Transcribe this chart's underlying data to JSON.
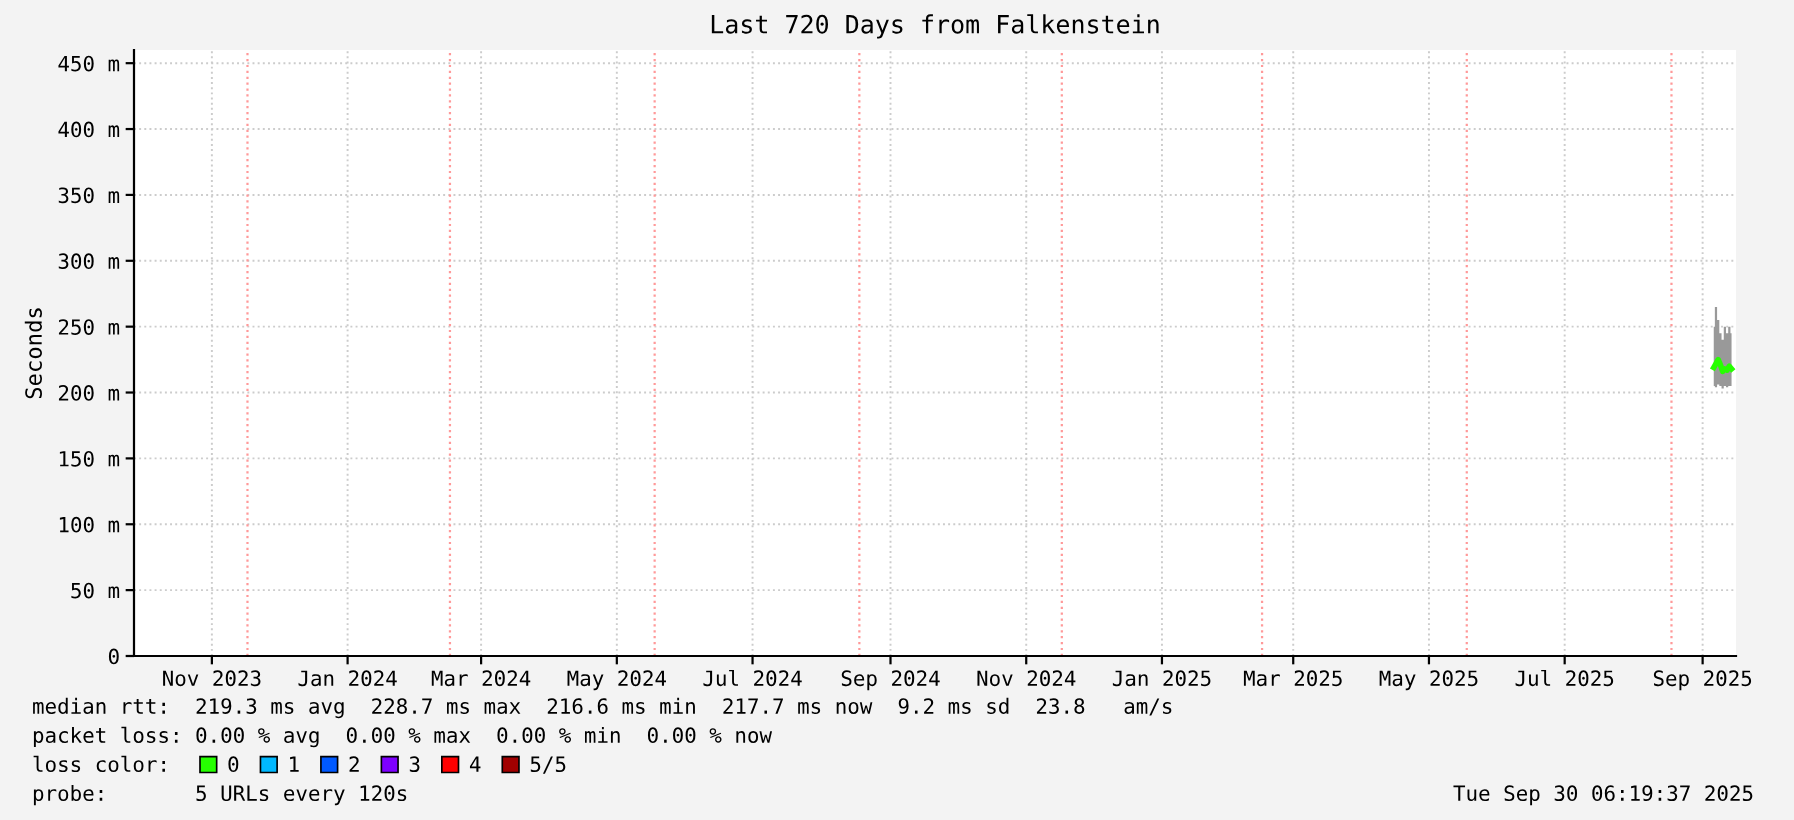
{
  "chart_data": {
    "type": "line",
    "title": "Last 720 Days from Falkenstein",
    "ylabel": "Seconds",
    "x": [
      "2025-09-20",
      "2025-09-21",
      "2025-09-22",
      "2025-09-23",
      "2025-09-24",
      "2025-09-25",
      "2025-09-26",
      "2025-09-27",
      "2025-09-28"
    ],
    "series": [
      {
        "name": "0",
        "color": "#26ff00",
        "values": [
          219,
          222,
          225,
          221,
          216,
          218,
          217,
          220,
          218
        ],
        "lower": [
          205,
          204,
          206,
          205,
          203,
          205,
          204,
          205,
          205
        ],
        "upper": [
          250,
          265,
          255,
          245,
          240,
          250,
          245,
          250,
          245
        ]
      },
      {
        "name": "1",
        "color": "#00b8ff",
        "values": [
          null,
          null,
          null,
          null,
          null,
          null,
          null,
          null,
          null
        ]
      },
      {
        "name": "2",
        "color": "#0059ff",
        "values": [
          null,
          null,
          null,
          null,
          null,
          null,
          null,
          null,
          null
        ]
      },
      {
        "name": "3",
        "color": "#7e00ff",
        "values": [
          null,
          null,
          null,
          null,
          null,
          null,
          null,
          null,
          null
        ]
      },
      {
        "name": "4",
        "color": "#ff0000",
        "values": [
          null,
          null,
          null,
          null,
          null,
          null,
          null,
          null,
          null
        ]
      },
      {
        "name": "5/5",
        "color": "#a10000",
        "values": [
          null,
          null,
          null,
          null,
          null,
          null,
          null,
          null,
          null
        ]
      }
    ],
    "xlim": [
      "2023-10-11",
      "2025-09-30"
    ],
    "xticks": [
      {
        "value": "2023-11-15",
        "label": "Nov 2023"
      },
      {
        "value": "2024-01-15",
        "label": "Jan 2024"
      },
      {
        "value": "2024-03-15",
        "label": "Mar 2024"
      },
      {
        "value": "2024-05-15",
        "label": "May 2024"
      },
      {
        "value": "2024-07-15",
        "label": "Jul 2024"
      },
      {
        "value": "2024-09-15",
        "label": "Sep 2024"
      },
      {
        "value": "2024-11-15",
        "label": "Nov 2024"
      },
      {
        "value": "2025-01-15",
        "label": "Jan 2025"
      },
      {
        "value": "2025-03-15",
        "label": "Mar 2025"
      },
      {
        "value": "2025-05-15",
        "label": "May 2025"
      },
      {
        "value": "2025-07-15",
        "label": "Jul 2025"
      },
      {
        "value": "2025-09-15",
        "label": "Sep 2025"
      }
    ],
    "ylim": [
      0,
      460
    ],
    "yticks": [
      0,
      {
        "value": 50,
        "label": "50 m"
      },
      {
        "value": 100,
        "label": "100 m"
      },
      {
        "value": 150,
        "label": "150 m"
      },
      {
        "value": 200,
        "label": "200 m"
      },
      {
        "value": 250,
        "label": "250 m"
      },
      {
        "value": 300,
        "label": "300 m"
      },
      {
        "value": 350,
        "label": "350 m"
      },
      {
        "value": 400,
        "label": "400 m"
      },
      {
        "value": 450,
        "label": "450 m"
      }
    ],
    "ref_lines": [
      {
        "axis": "x",
        "value": "2023-12-01",
        "color": "#ff9999",
        "line_style": "dotted"
      },
      {
        "axis": "x",
        "value": "2024-03-01",
        "color": "#ff9999",
        "line_style": "dotted"
      },
      {
        "axis": "x",
        "value": "2024-06-01",
        "color": "#ff9999",
        "line_style": "dotted"
      },
      {
        "axis": "x",
        "value": "2024-09-01",
        "color": "#ff9999",
        "line_style": "dotted"
      },
      {
        "axis": "x",
        "value": "2024-12-01",
        "color": "#ff9999",
        "line_style": "dotted"
      },
      {
        "axis": "x",
        "value": "2025-03-01",
        "color": "#ff9999",
        "line_style": "dotted"
      },
      {
        "axis": "x",
        "value": "2025-06-01",
        "color": "#ff9999",
        "line_style": "dotted"
      },
      {
        "axis": "x",
        "value": "2025-09-01",
        "color": "#ff9999",
        "line_style": "dotted"
      }
    ],
    "grid": true,
    "legend": "bottom left",
    "marker": "none",
    "line_style": "solid",
    "annotations": [
      "median rtt:  219.3 ms avg  228.7 ms max  216.6 ms min  217.7 ms now  9.2 ms sd  23.8   am/s",
      "packet loss: 0.00 % avg  0.00 % max  0.00 % min  0.00 % now",
      "loss color:",
      "probe:       5 URLs every 120s",
      "Tue Sep 30 06:19:37 2025"
    ]
  }
}
